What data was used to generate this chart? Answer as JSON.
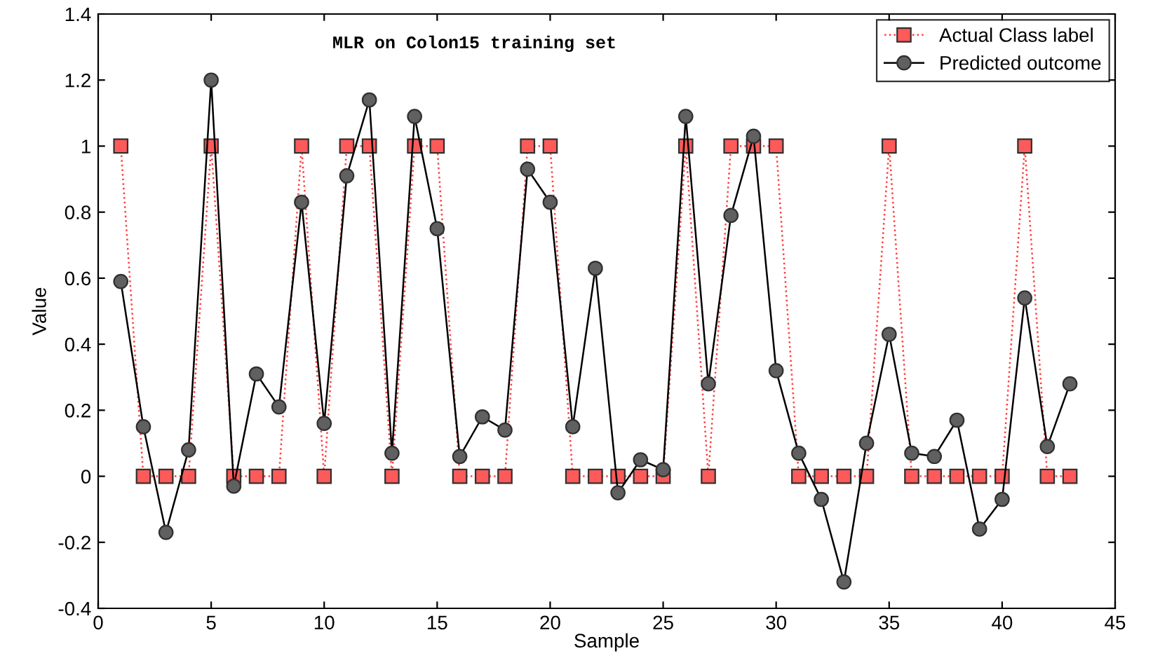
{
  "chart_data": {
    "type": "line",
    "title": "MLR on Colon15 training set",
    "xlabel": "Sample",
    "ylabel": "Value",
    "x": [
      1,
      2,
      3,
      4,
      5,
      6,
      7,
      8,
      9,
      10,
      11,
      12,
      13,
      14,
      15,
      16,
      17,
      18,
      19,
      20,
      21,
      22,
      23,
      24,
      25,
      26,
      27,
      28,
      29,
      30,
      31,
      32,
      33,
      34,
      35,
      36,
      37,
      38,
      39,
      40,
      41,
      42,
      43
    ],
    "series": [
      {
        "name": "Actual Class label",
        "color": "#ff5a5a",
        "marker": "square",
        "line_style": "dotted",
        "values": [
          1,
          0,
          0,
          0,
          1,
          0,
          0,
          0,
          1,
          0,
          1,
          1,
          0,
          1,
          1,
          0,
          0,
          0,
          1,
          1,
          0,
          0,
          0,
          0,
          0,
          1,
          0,
          1,
          1,
          1,
          0,
          0,
          0,
          0,
          1,
          0,
          0,
          0,
          0,
          0,
          1,
          0,
          0
        ]
      },
      {
        "name": "Predicted outcome",
        "color": "#606060",
        "marker": "circle",
        "line_style": "solid",
        "values": [
          0.59,
          0.15,
          -0.17,
          0.08,
          1.2,
          -0.03,
          0.31,
          0.21,
          0.83,
          0.16,
          0.91,
          1.14,
          0.07,
          1.09,
          0.75,
          0.06,
          0.18,
          0.14,
          0.93,
          0.83,
          0.15,
          0.63,
          -0.05,
          0.05,
          0.02,
          1.09,
          0.28,
          0.79,
          1.03,
          0.32,
          0.07,
          -0.07,
          -0.32,
          0.1,
          0.43,
          0.07,
          0.06,
          0.17,
          -0.16,
          -0.07,
          0.54,
          0.09,
          0.28
        ]
      }
    ],
    "xlim": [
      0,
      45
    ],
    "xticks": [
      0,
      5,
      10,
      15,
      20,
      25,
      30,
      35,
      40,
      45
    ],
    "ylim": [
      -0.4,
      1.4
    ],
    "yticks": [
      -0.4,
      -0.2,
      0,
      0.2,
      0.4,
      0.6,
      0.8,
      1,
      1.2,
      1.4
    ],
    "grid": false,
    "legend": "top right"
  }
}
